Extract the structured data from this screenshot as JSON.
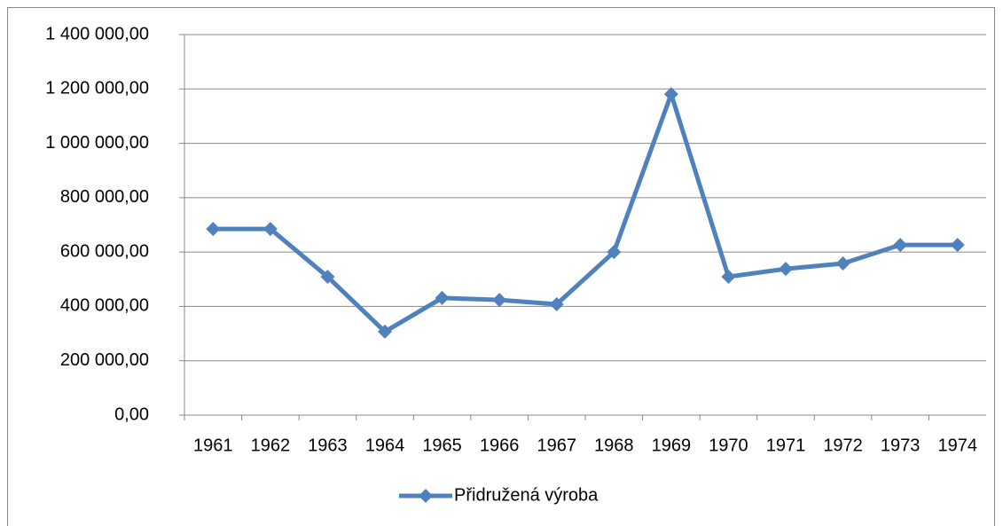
{
  "chart_data": {
    "type": "line",
    "categories": [
      "1961",
      "1962",
      "1963",
      "1964",
      "1965",
      "1966",
      "1967",
      "1968",
      "1969",
      "1970",
      "1971",
      "1972",
      "1973",
      "1974"
    ],
    "series": [
      {
        "name": "Přidružená výroba",
        "color": "#4f81bd",
        "values": [
          685000,
          685000,
          509000,
          307000,
          431000,
          424000,
          408000,
          600000,
          1181000,
          509000,
          538000,
          558000,
          626000,
          626000
        ]
      }
    ],
    "ylim": [
      0,
      1400000
    ],
    "yticks": [
      {
        "value": 0,
        "label": "0,00"
      },
      {
        "value": 200000,
        "label": "200 000,00"
      },
      {
        "value": 400000,
        "label": "400 000,00"
      },
      {
        "value": 600000,
        "label": "600 000,00"
      },
      {
        "value": 800000,
        "label": "800 000,00"
      },
      {
        "value": 1000000,
        "label": "1 000 000,00"
      },
      {
        "value": 1200000,
        "label": "1 200 000,00"
      },
      {
        "value": 1400000,
        "label": "1 400 000,00"
      }
    ],
    "grid": true,
    "legend": "bottom"
  }
}
